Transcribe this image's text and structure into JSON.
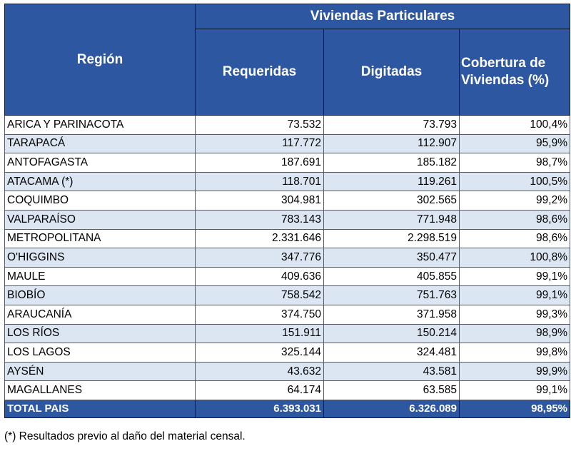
{
  "header": {
    "group": "Viviendas Particulares",
    "region": "Región",
    "requeridas": "Requeridas",
    "digitadas": "Digitadas",
    "cobertura_line1": "Cobertura de",
    "cobertura_line2": "Viviendas (%)"
  },
  "rows": [
    {
      "region": "ARICA Y PARINACOTA",
      "requeridas": "73.532",
      "digitadas": "73.793",
      "cobertura": "100,4%"
    },
    {
      "region": "TARAPACÁ",
      "requeridas": "117.772",
      "digitadas": "112.907",
      "cobertura": "95,9%"
    },
    {
      "region": "ANTOFAGASTA",
      "requeridas": "187.691",
      "digitadas": "185.182",
      "cobertura": "98,7%"
    },
    {
      "region": "ATACAMA (*)",
      "requeridas": "118.701",
      "digitadas": "119.261",
      "cobertura": "100,5%"
    },
    {
      "region": "COQUIMBO",
      "requeridas": "304.981",
      "digitadas": "302.565",
      "cobertura": "99,2%"
    },
    {
      "region": "VALPARAÍSO",
      "requeridas": "783.143",
      "digitadas": "771.948",
      "cobertura": "98,6%"
    },
    {
      "region": "METROPOLITANA",
      "requeridas": "2.331.646",
      "digitadas": "2.298.519",
      "cobertura": "98,6%"
    },
    {
      "region": "O'HIGGINS",
      "requeridas": "347.776",
      "digitadas": "350.477",
      "cobertura": "100,8%"
    },
    {
      "region": "MAULE",
      "requeridas": "409.636",
      "digitadas": "405.855",
      "cobertura": "99,1%"
    },
    {
      "region": "BIOBÍO",
      "requeridas": "758.542",
      "digitadas": "751.763",
      "cobertura": "99,1%"
    },
    {
      "region": "ARAUCANÍA",
      "requeridas": "374.750",
      "digitadas": "371.958",
      "cobertura": "99,3%"
    },
    {
      "region": "LOS RÍOS",
      "requeridas": "151.911",
      "digitadas": "150.214",
      "cobertura": "98,9%"
    },
    {
      "region": "LOS LAGOS",
      "requeridas": "325.144",
      "digitadas": "324.481",
      "cobertura": "99,8%"
    },
    {
      "region": "AYSÉN",
      "requeridas": "43.632",
      "digitadas": "43.581",
      "cobertura": "99,9%"
    },
    {
      "region": "MAGALLANES",
      "requeridas": "64.174",
      "digitadas": "63.585",
      "cobertura": "99,1%"
    }
  ],
  "total": {
    "region": "TOTAL PAIS",
    "requeridas": "6.393.031",
    "digitadas": "6.326.089",
    "cobertura": "98,95%"
  },
  "footnote": "(*) Resultados previo al daño del material censal.",
  "colors": {
    "header_bg": "#2e57a1",
    "stripe_bg": "#dce6f2",
    "border": "#555a66"
  }
}
